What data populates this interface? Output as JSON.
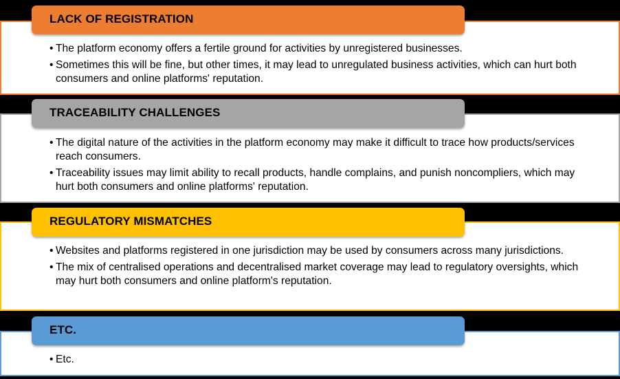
{
  "sections": [
    {
      "title": "LACK OF REGISTRATION",
      "color": "#ED7D31",
      "bullets": [
        "The platform economy offers a fertile ground for activities by unregistered businesses.",
        "Sometimes this will be fine, but other times, it may lead to unregulated business activities, which can hurt both consumers and online platforms' reputation."
      ]
    },
    {
      "title": "TRACEABILITY CHALLENGES",
      "color": "#A5A5A5",
      "bullets": [
        "The digital nature of the activities in the platform economy may make it difficult to trace how products/services reach consumers.",
        "Traceability issues may limit ability to recall products, handle complains, and punish noncompliers, which may hurt both consumers and online platforms' reputation."
      ]
    },
    {
      "title": "REGULATORY MISMATCHES",
      "color": "#FFC000",
      "bullets": [
        "Websites and platforms registered in one jurisdiction may be used by consumers across many jurisdictions.",
        "The mix of centralised operations and decentralised market coverage may lead to regulatory oversights, which may hurt both consumers and online platform's reputation."
      ]
    },
    {
      "title": "ETC.",
      "color": "#5B9BD5",
      "bullets": [
        "Etc."
      ]
    }
  ]
}
